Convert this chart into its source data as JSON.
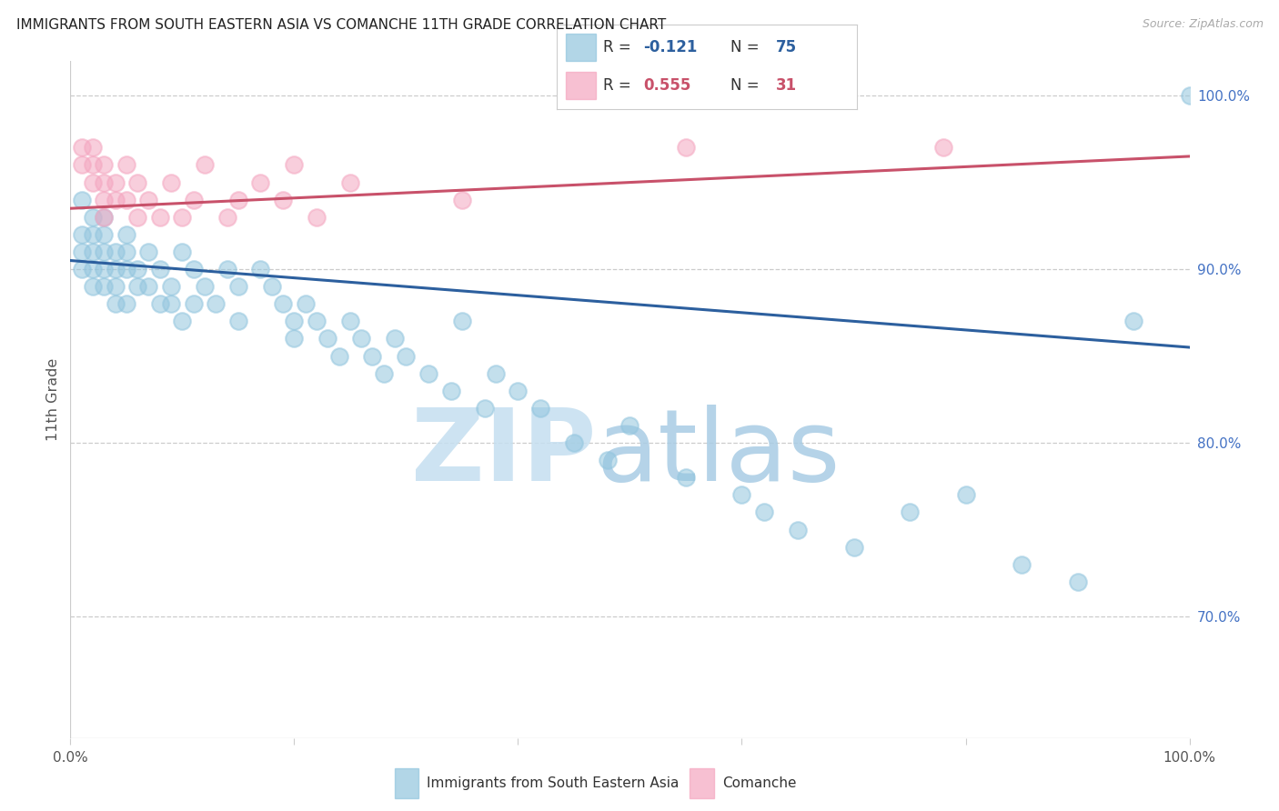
{
  "title": "IMMIGRANTS FROM SOUTH EASTERN ASIA VS COMANCHE 11TH GRADE CORRELATION CHART",
  "source": "Source: ZipAtlas.com",
  "ylabel": "11th Grade",
  "legend_label1": "Immigrants from South Eastern Asia",
  "legend_label2": "Comanche",
  "R1": -0.121,
  "N1": 75,
  "R2": 0.555,
  "N2": 31,
  "blue_color": "#92c5de",
  "pink_color": "#f4a6c0",
  "trendline_blue": "#2c5f9e",
  "trendline_pink": "#c8516a",
  "blue_scatter_x": [
    1,
    1,
    1,
    1,
    2,
    2,
    2,
    2,
    2,
    3,
    3,
    3,
    3,
    3,
    4,
    4,
    4,
    4,
    5,
    5,
    5,
    5,
    6,
    6,
    7,
    7,
    8,
    8,
    9,
    9,
    10,
    10,
    11,
    11,
    12,
    13,
    14,
    15,
    15,
    17,
    18,
    19,
    20,
    20,
    21,
    22,
    23,
    24,
    25,
    26,
    27,
    28,
    29,
    30,
    32,
    34,
    35,
    37,
    38,
    40,
    42,
    45,
    48,
    50,
    55,
    60,
    62,
    65,
    70,
    75,
    80,
    85,
    90,
    95,
    100
  ],
  "blue_scatter_y": [
    94,
    92,
    91,
    90,
    93,
    92,
    91,
    90,
    89,
    93,
    92,
    91,
    90,
    89,
    91,
    90,
    89,
    88,
    92,
    91,
    90,
    88,
    90,
    89,
    91,
    89,
    90,
    88,
    89,
    88,
    91,
    87,
    90,
    88,
    89,
    88,
    90,
    89,
    87,
    90,
    89,
    88,
    87,
    86,
    88,
    87,
    86,
    85,
    87,
    86,
    85,
    84,
    86,
    85,
    84,
    83,
    87,
    82,
    84,
    83,
    82,
    80,
    79,
    81,
    78,
    77,
    76,
    75,
    74,
    76,
    77,
    73,
    72,
    87,
    100
  ],
  "pink_scatter_x": [
    1,
    1,
    2,
    2,
    2,
    3,
    3,
    3,
    3,
    4,
    4,
    5,
    5,
    6,
    6,
    7,
    8,
    9,
    10,
    11,
    12,
    14,
    15,
    17,
    19,
    20,
    22,
    25,
    35,
    55,
    78
  ],
  "pink_scatter_y": [
    97,
    96,
    97,
    96,
    95,
    96,
    95,
    94,
    93,
    95,
    94,
    96,
    94,
    95,
    93,
    94,
    93,
    95,
    93,
    94,
    96,
    93,
    94,
    95,
    94,
    96,
    93,
    95,
    94,
    97,
    97
  ],
  "xlim": [
    0,
    100
  ],
  "ylim": [
    63,
    102
  ],
  "ytick_values": [
    70.0,
    80.0,
    90.0,
    100.0
  ],
  "trendline_blue_start_y": 90.5,
  "trendline_blue_end_y": 85.5,
  "trendline_pink_start_y": 93.5,
  "trendline_pink_end_y": 96.5,
  "background_color": "#ffffff"
}
